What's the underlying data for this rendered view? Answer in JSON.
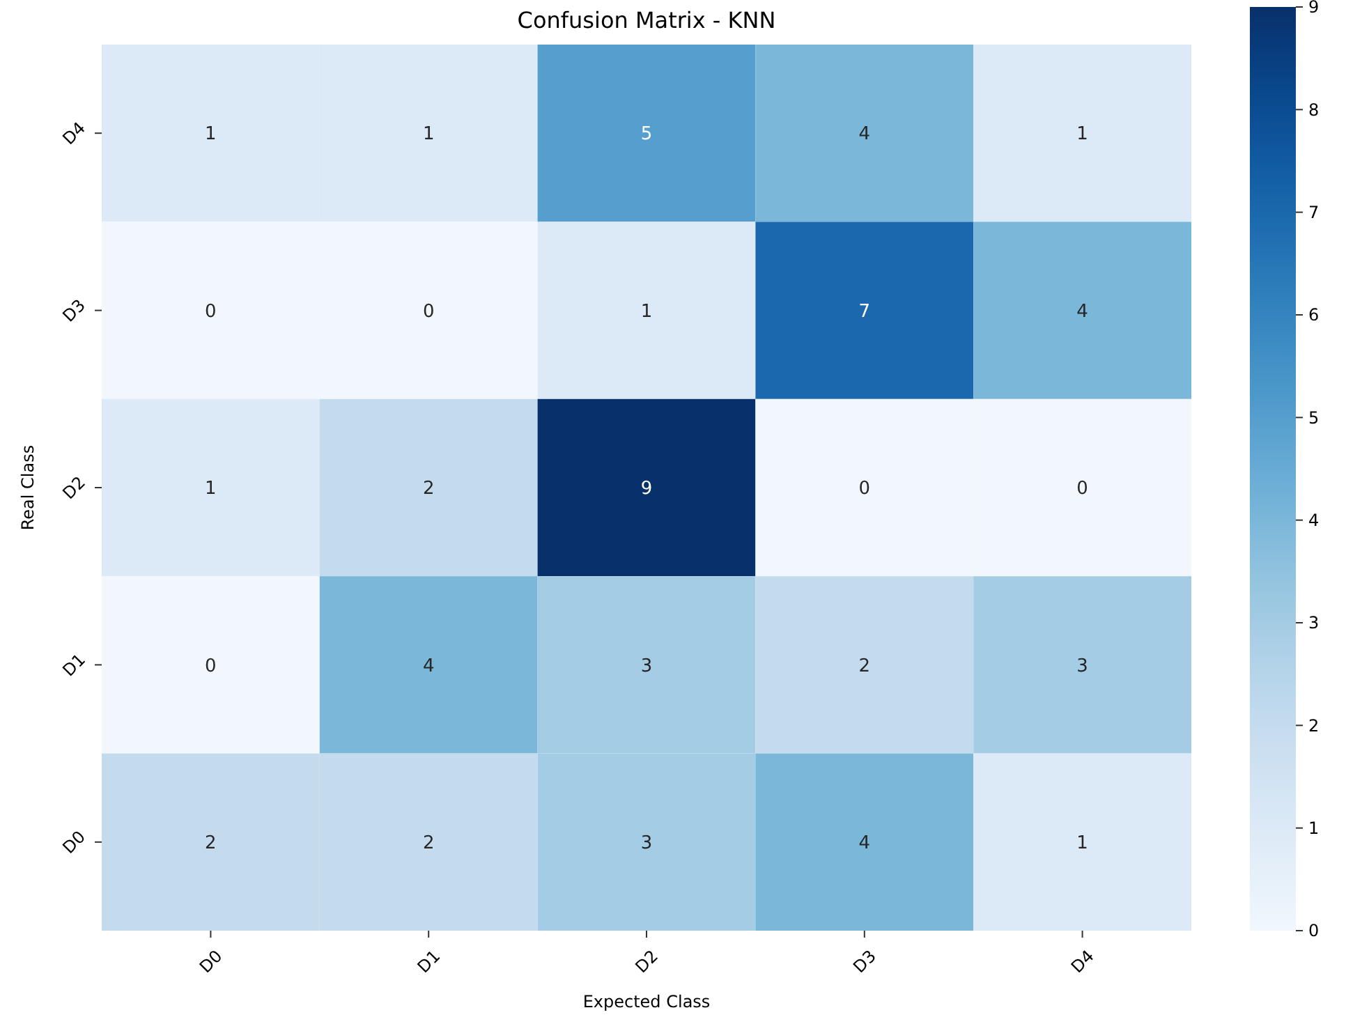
{
  "chart_data": {
    "type": "heatmap",
    "title": "Confusion Matrix - KNN",
    "xlabel": "Expected Class",
    "ylabel": "Real Class",
    "categories": [
      "D0",
      "D1",
      "D2",
      "D3",
      "D4"
    ],
    "y_categories": [
      "D4",
      "D3",
      "D2",
      "D1",
      "D0"
    ],
    "cells": [
      [
        1,
        1,
        5,
        4,
        1
      ],
      [
        0,
        0,
        1,
        7,
        4
      ],
      [
        1,
        2,
        9,
        0,
        0
      ],
      [
        0,
        4,
        3,
        2,
        3
      ],
      [
        2,
        2,
        3,
        4,
        1
      ]
    ],
    "clim": [
      0,
      9
    ],
    "cticks": [
      0,
      1,
      2,
      3,
      4,
      5,
      6,
      7,
      8,
      9
    ],
    "data_labels": true
  }
}
